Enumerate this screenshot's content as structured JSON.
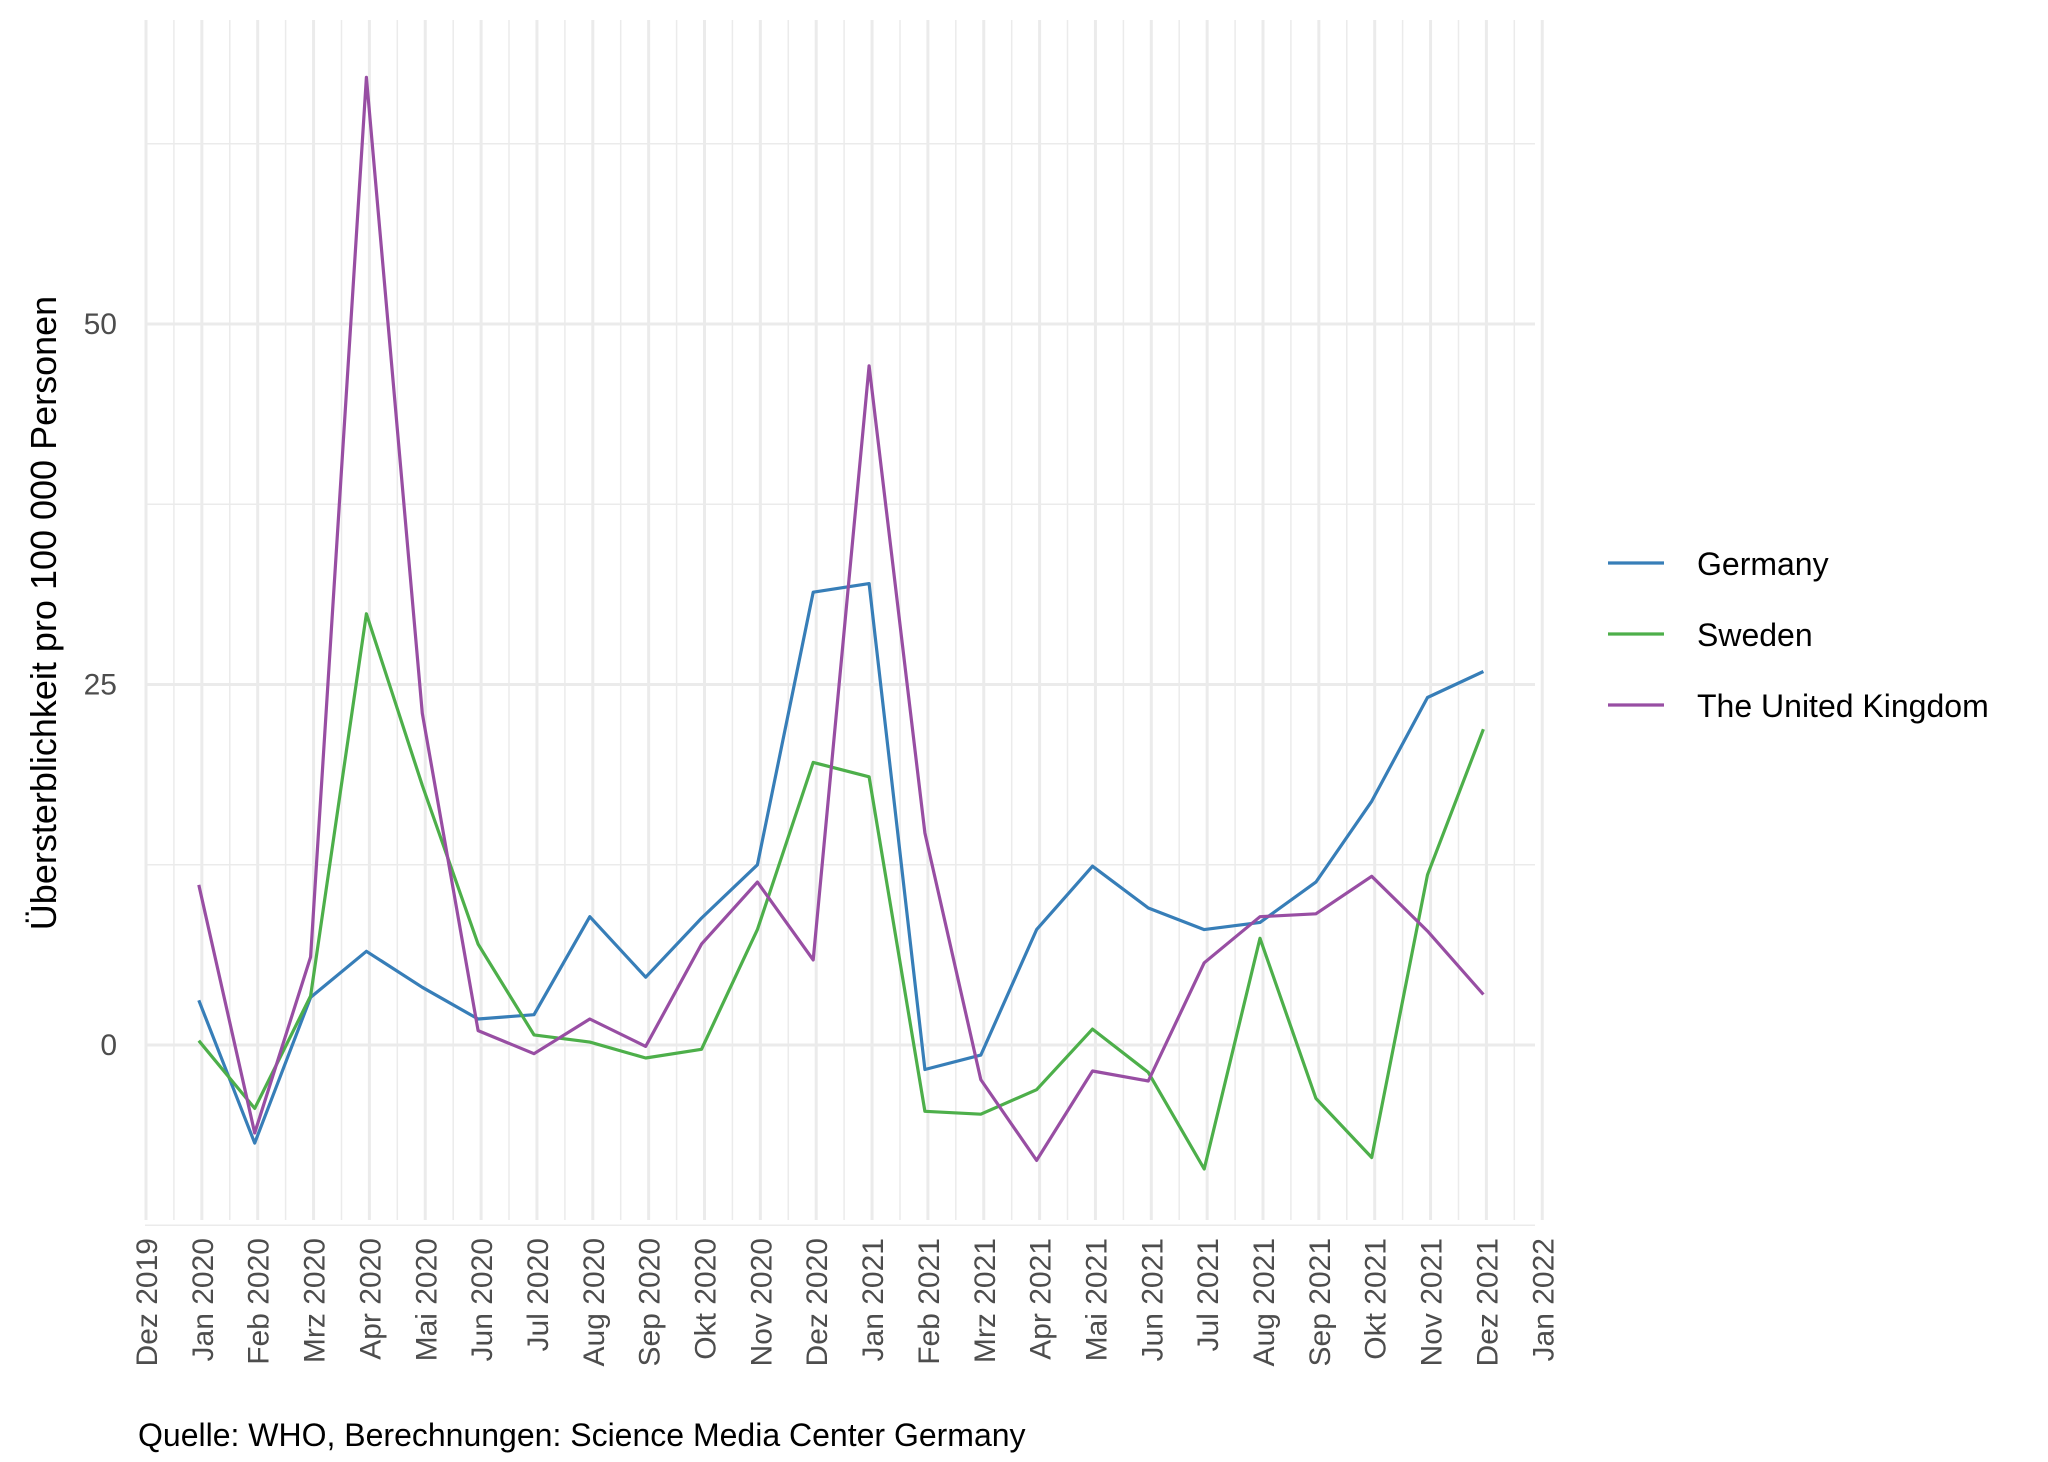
{
  "chart_data": {
    "type": "line",
    "title": "",
    "xlabel": "",
    "ylabel": "Übersterblichkeit pro 100 000 Personen",
    "caption": "Quelle: WHO, Berechnungen: Science Media Center Germany",
    "legend_position": "right",
    "grid": true,
    "ylim": [
      -12.5,
      71
    ],
    "y_ticks": [
      0,
      25,
      50
    ],
    "x_tick_labels": [
      "Dez 2019",
      "Jan 2020",
      "Feb 2020",
      "Mrz 2020",
      "Apr 2020",
      "Mai 2020",
      "Jun 2020",
      "Jul 2020",
      "Aug 2020",
      "Sep 2020",
      "Okt 2020",
      "Nov 2020",
      "Dez 2020",
      "Jan 2021",
      "Feb 2021",
      "Mrz 2021",
      "Apr 2021",
      "Mai 2021",
      "Jun 2021",
      "Jul 2021",
      "Aug 2021",
      "Sep 2021",
      "Okt 2021",
      "Nov 2021",
      "Dez 2021",
      "Jan 2022"
    ],
    "categories": [
      "Jan 2020",
      "Feb 2020",
      "Mrz 2020",
      "Apr 2020",
      "Mai 2020",
      "Jun 2020",
      "Jul 2020",
      "Aug 2020",
      "Sep 2020",
      "Okt 2020",
      "Nov 2020",
      "Dez 2020",
      "Jan 2021",
      "Feb 2021",
      "Mrz 2021",
      "Apr 2021",
      "Mai 2021",
      "Jun 2021",
      "Jul 2021",
      "Aug 2021",
      "Sep 2021",
      "Okt 2021",
      "Nov 2021",
      "Dez 2021"
    ],
    "series": [
      {
        "name": "Germany",
        "color": "#377eb8",
        "values": [
          3.1,
          -6.8,
          3.3,
          6.5,
          4.0,
          1.8,
          2.1,
          8.9,
          4.7,
          8.8,
          12.5,
          31.4,
          32.0,
          -1.7,
          -0.7,
          8.0,
          12.4,
          9.5,
          8.0,
          8.5,
          11.3,
          16.9,
          24.1,
          25.9
        ]
      },
      {
        "name": "Sweden",
        "color": "#4daf4a",
        "values": [
          0.3,
          -4.4,
          3.4,
          29.9,
          18.0,
          7.0,
          0.7,
          0.2,
          -0.9,
          -0.3,
          8.0,
          19.6,
          18.6,
          -4.6,
          -4.8,
          -3.1,
          1.1,
          -1.9,
          -8.6,
          7.4,
          -3.7,
          -7.8,
          11.8,
          21.9
        ]
      },
      {
        "name": "The United Kingdom",
        "color": "#984ea3",
        "values": [
          11.1,
          -6.1,
          6.1,
          67.1,
          23.0,
          1.0,
          -0.6,
          1.8,
          -0.1,
          7.0,
          11.3,
          5.9,
          47.1,
          14.7,
          -2.4,
          -8.0,
          -1.8,
          -2.5,
          5.7,
          8.9,
          9.1,
          11.7,
          7.9,
          3.5
        ]
      }
    ]
  }
}
